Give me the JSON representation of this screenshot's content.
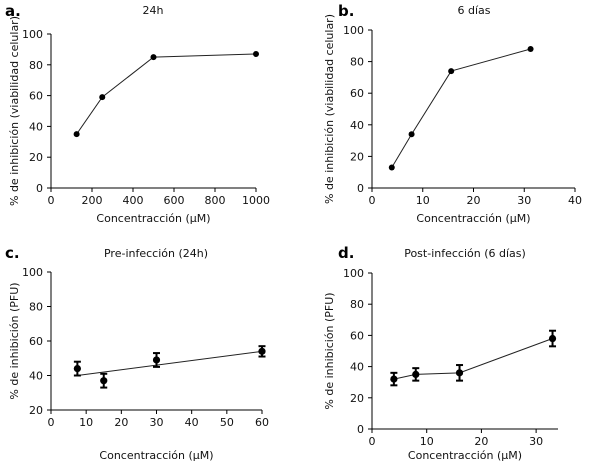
{
  "chart_data": [
    {
      "panel": "a.",
      "type": "line",
      "title": "24h",
      "xlabel": "Concentracción (μM)",
      "ylabel": "% de inhibición (viabilidad celular)",
      "xlim": [
        0,
        1000
      ],
      "ylim": [
        0,
        100
      ],
      "xticks": [
        "0",
        "200",
        "400",
        "600",
        "800",
        "1000"
      ],
      "yticks": [
        "0",
        "20",
        "40",
        "60",
        "80",
        "100"
      ],
      "grid": false,
      "x": [
        125,
        250,
        500,
        1000
      ],
      "y": [
        35,
        59,
        85,
        87
      ]
    },
    {
      "panel": "b.",
      "type": "line",
      "title": "6 días",
      "xlabel": "Concentracción (μM)",
      "ylabel": "% de inhibición (viabilidad celular)",
      "xlim": [
        0,
        40
      ],
      "ylim": [
        0,
        100
      ],
      "xticks": [
        "0",
        "10",
        "20",
        "30",
        "40"
      ],
      "yticks": [
        "0",
        "20",
        "40",
        "60",
        "80",
        "100"
      ],
      "grid": false,
      "x": [
        3.9,
        7.8,
        15.6,
        31.25
      ],
      "y": [
        13,
        34,
        74,
        88
      ]
    },
    {
      "panel": "c.",
      "type": "line",
      "title": "Pre-infección (24h)",
      "xlabel": "Concentracción (μM)",
      "ylabel": "% de inhibición (PFU)",
      "xlim": [
        0,
        60
      ],
      "ylim": [
        20,
        100
      ],
      "xticks": [
        "0",
        "10",
        "20",
        "30",
        "40",
        "50",
        "60"
      ],
      "yticks": [
        "20",
        "40",
        "60",
        "80",
        "100"
      ],
      "grid": false,
      "x": [
        7.5,
        15,
        30,
        60
      ],
      "y": [
        44,
        37,
        49,
        54
      ],
      "fit_line": {
        "from": [
          7.5,
          40
        ],
        "to": [
          60,
          54
        ]
      },
      "error": [
        4,
        4,
        4,
        3
      ]
    },
    {
      "panel": "d.",
      "type": "line",
      "title": "Post-infección (6 días)",
      "xlabel": "Concentracción (μM)",
      "ylabel": "% de inhibición (PFU)",
      "xlim": [
        0,
        34
      ],
      "ylim": [
        0,
        100
      ],
      "xticks": [
        "0",
        "10",
        "20",
        "30"
      ],
      "yticks": [
        "0",
        "20",
        "40",
        "60",
        "80",
        "100"
      ],
      "grid": false,
      "x": [
        4,
        8,
        16,
        33
      ],
      "y": [
        32,
        35,
        36,
        58
      ],
      "error": [
        4,
        4,
        5,
        5
      ]
    }
  ]
}
